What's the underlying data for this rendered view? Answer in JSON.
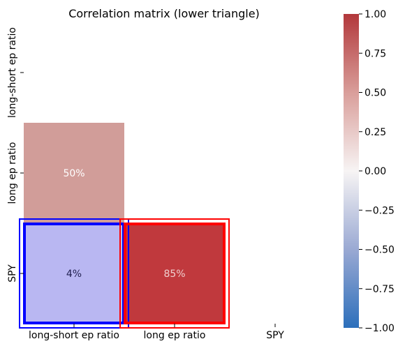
{
  "chart_data": {
    "type": "heatmap",
    "title": "Correlation matrix (lower triangle)",
    "xlabel": "",
    "ylabel": "",
    "labels": [
      "long-short ep ratio",
      "long ep ratio",
      "SPY"
    ],
    "cells": [
      {
        "row": 1,
        "col": 0,
        "value": 0.5,
        "label": "50%"
      },
      {
        "row": 2,
        "col": 0,
        "value": 0.04,
        "label": "4%"
      },
      {
        "row": 2,
        "col": 1,
        "value": 0.85,
        "label": "85%"
      }
    ],
    "cell_colors": {
      "1-0": "#d19d99",
      "2-0": "#b9b7f2",
      "2-1": "#c0393d"
    },
    "cell_text_colors": {
      "1-0": "#ffffff",
      "2-0": "#1f1f4f",
      "2-1": "#f0d0cf"
    },
    "colorbar": {
      "min": -1.0,
      "max": 1.0,
      "ticks": [
        1.0,
        0.75,
        0.5,
        0.25,
        0.0,
        -0.25,
        -0.5,
        -0.75,
        -1.0
      ],
      "tick_labels": [
        "1.00",
        "0.75",
        "0.50",
        "0.25",
        "0.00",
        "−0.25",
        "−0.50",
        "−0.75",
        "−1.00"
      ],
      "colormap": "vlag",
      "color_stops": [
        "#2c6fbb",
        "#9aa9d3",
        "#f7f4f4",
        "#d99e9a",
        "#b2383b"
      ]
    },
    "highlight_boxes": [
      {
        "row": 2,
        "col": 0,
        "color": "#0000ff"
      },
      {
        "row": 2,
        "col": 1,
        "color": "#ff0000"
      }
    ]
  }
}
